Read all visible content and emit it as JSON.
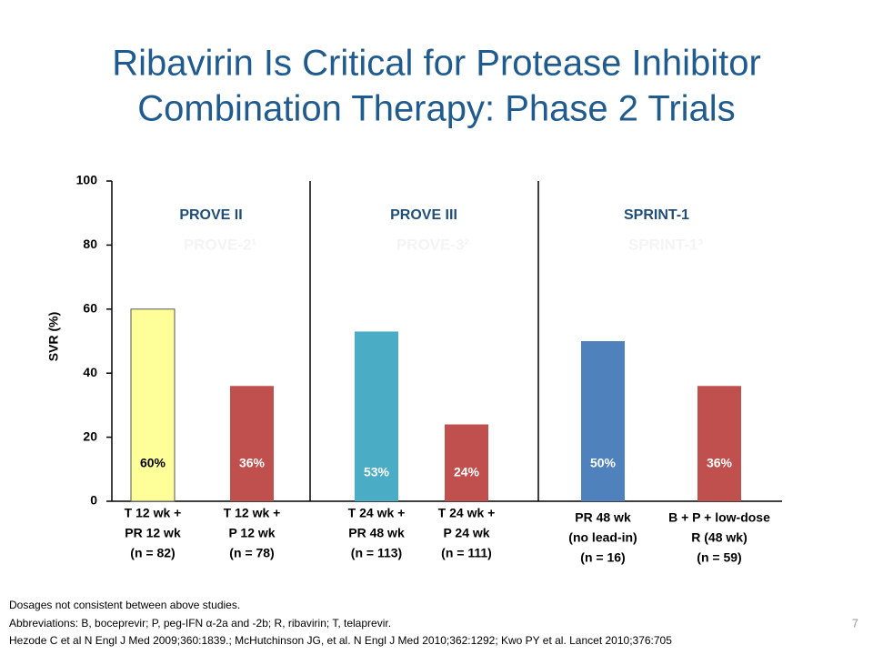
{
  "chart_data": {
    "type": "bar",
    "title": [
      "Ribavirin Is Critical for Protease Inhibitor",
      "Combination Therapy: Phase 2 Trials"
    ],
    "ylabel": "SVR (%)",
    "ylim": [
      0,
      100
    ],
    "yticks": [
      0,
      20,
      40,
      60,
      80,
      100
    ],
    "groups": [
      "PROVE II",
      "PROVE III",
      "SPRINT-1"
    ],
    "ghost_labels": [
      "PROVE-2¹",
      "PROVE-3²",
      "SPRINT-1³"
    ],
    "categories": [
      [
        "T 12 wk +",
        "PR 12 wk",
        "(n = 82)"
      ],
      [
        "T 12 wk +",
        "P 12 wk",
        "(n = 78)"
      ],
      [
        "T 24 wk +",
        "PR 48 wk",
        "(n = 113)"
      ],
      [
        "T 24 wk +",
        "P 24 wk",
        "(n = 111)"
      ],
      [
        "PR 48 wk",
        "(no lead-in)",
        "(n = 16)"
      ],
      [
        "B + P + low-dose",
        "R (48 wk)",
        "(n = 59)"
      ]
    ],
    "values": [
      60,
      36,
      53,
      24,
      50,
      36
    ],
    "value_labels": [
      "60%",
      "36%",
      "53%",
      "24%",
      "50%",
      "36%"
    ],
    "colors": [
      "#ffff99",
      "#c0504d",
      "#4bacc6",
      "#c0504d",
      "#4f81bd",
      "#c0504d"
    ],
    "footnotes": [
      "Dosages not consistent between above studies.",
      "Abbreviations: B, boceprevir; P, peg-IFN α-2a and -2b; R, ribavirin; T, telaprevir.",
      "Hezode C et al N Engl J Med 2009;360:1839.; McHutchinson JG, et al. N Engl J Med 2010;362:1292; Kwo PY et al. Lancet 2010;376:705"
    ],
    "page_number": "7"
  }
}
